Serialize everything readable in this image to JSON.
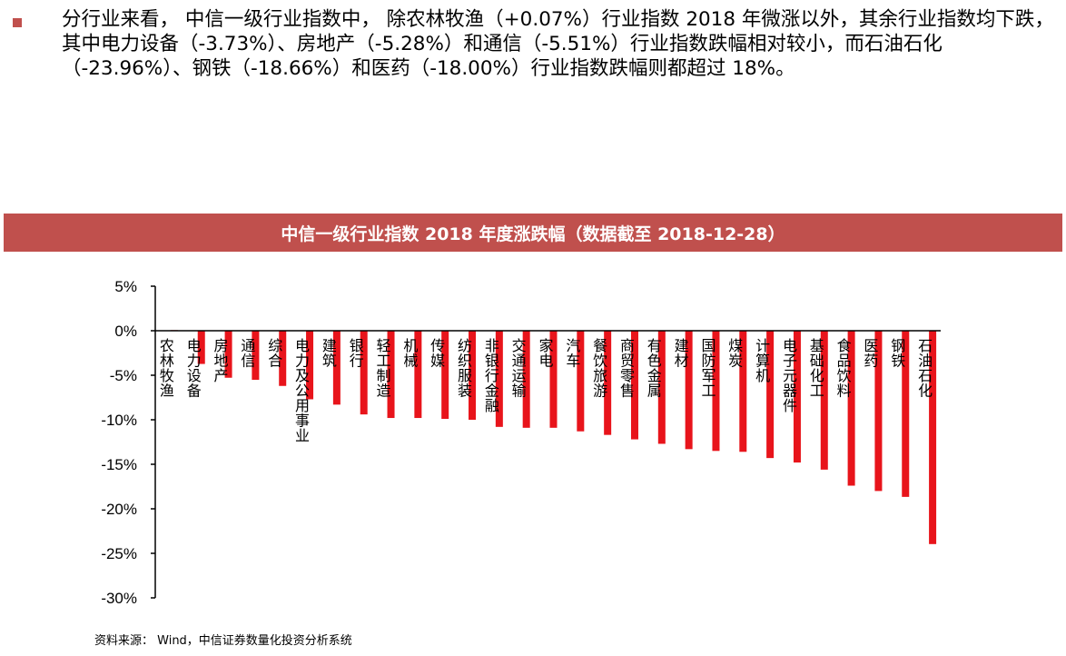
{
  "paragraph": "分行业来看， 中信一级行业指数中， 除农林牧渔（+0.07%）行业指数 2018 年微涨以外，其余行业指数均下跌，其中电力设备（-3.73%）、房地产（-5.28%）和通信（-5.51%）行业指数跌幅相对较小，而石油石化（-23.96%）、钢铁（-18.66%）和医药（-18.00%）行业指数跌幅则都超过 18%。",
  "source_note": "资料来源： Wind，中信证券数量化投资分析系统",
  "colors": {
    "bar": "#e8141b",
    "title_bg": "#c0504d",
    "bullet": "#c0504d"
  },
  "chart_data": {
    "type": "bar",
    "title": "中信一级行业指数 2018 年度涨跌幅（数据截至 2018-12-28）",
    "ylim": [
      -30,
      5
    ],
    "yticks": [
      5,
      0,
      -5,
      -10,
      -15,
      -20,
      -25,
      -30
    ],
    "ytick_labels": [
      "5%",
      "0%",
      "-5%",
      "-10%",
      "-15%",
      "-20%",
      "-25%",
      "-30%"
    ],
    "categories": [
      "农林牧渔",
      "电力设备",
      "房地产",
      "通信",
      "综合",
      "电力及公用事业",
      "建筑",
      "银行",
      "轻工制造",
      "机械",
      "传媒",
      "纺织服装",
      "非银行金融",
      "交通运输",
      "家电",
      "汽车",
      "餐饮旅游",
      "商贸零售",
      "有色金属",
      "建材",
      "国防军工",
      "煤炭",
      "计算机",
      "电子元器件",
      "基础化工",
      "食品饮料",
      "医药",
      "钢铁",
      "石油石化"
    ],
    "values": [
      0.07,
      -3.73,
      -5.28,
      -5.51,
      -6.2,
      -7.7,
      -8.3,
      -9.4,
      -9.8,
      -9.8,
      -9.9,
      -10.0,
      -10.8,
      -10.9,
      -10.9,
      -11.3,
      -11.7,
      -12.2,
      -12.7,
      -13.3,
      -13.5,
      -13.6,
      -14.3,
      -14.8,
      -15.6,
      -17.4,
      -18.0,
      -18.66,
      -23.96
    ]
  }
}
